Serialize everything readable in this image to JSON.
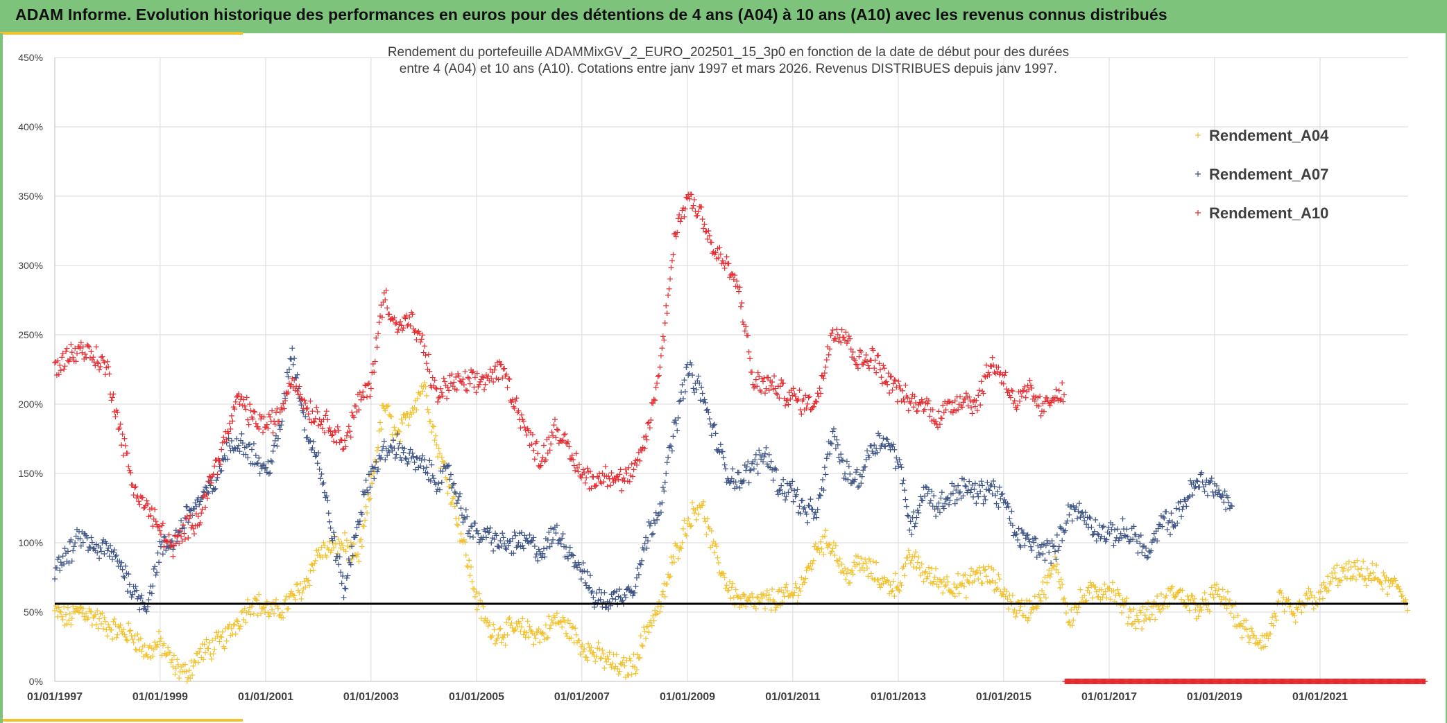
{
  "header": {
    "title": "ADAM Informe. Evolution historique des performances en euros pour des détentions de 4 ans (A04) à 10 ans (A10) avec les revenus connus distribués"
  },
  "colors": {
    "header_bg": "#7dc37c",
    "accent": "#f2c12e",
    "A04": "#f2c12e",
    "A07": "#3b5283",
    "A10": "#e52a2f",
    "reference_line": "#000000"
  },
  "chart_data": {
    "type": "scatter",
    "title_lines": [
      "Rendement du portefeuille ADAMMixGV_2_EURO_202501_15_3p0  en fonction de la date de début pour des durées",
      "entre 4 (A04) et 10 ans (A10). Cotations entre janv 1997 et mars 2026. Revenus DISTRIBUES depuis janv 1997."
    ],
    "xlabel": "",
    "ylabel": "",
    "x_range": [
      "1997-01-01",
      "2023-01-01"
    ],
    "ylim": [
      0,
      450
    ],
    "y_ticks": [
      "0%",
      "50%",
      "100%",
      "150%",
      "200%",
      "250%",
      "300%",
      "350%",
      "400%",
      "450%"
    ],
    "x_ticks": [
      "01/01/1997",
      "01/01/1999",
      "01/01/2001",
      "01/01/2003",
      "01/01/2005",
      "01/01/2007",
      "01/01/2009",
      "01/01/2011",
      "01/01/2013",
      "01/01/2015",
      "01/01/2017",
      "01/01/2019",
      "01/01/2021"
    ],
    "grid": true,
    "legend_position": "top-right",
    "marker": "+",
    "reference_line_value": 56,
    "zero_band": {
      "series": "Rendement_A10",
      "from": "2016-03-01",
      "to": "2023-01-01",
      "value": 0
    },
    "series": [
      {
        "name": "Rendement_A04",
        "end": "2022-09-01",
        "points": [
          [
            "1997-01-01",
            50
          ],
          [
            "1997-04-01",
            45
          ],
          [
            "1997-07-01",
            52
          ],
          [
            "1997-10-01",
            46
          ],
          [
            "1998-01-01",
            40
          ],
          [
            "1998-04-01",
            36
          ],
          [
            "1998-07-01",
            33
          ],
          [
            "1998-10-01",
            20
          ],
          [
            "1999-01-01",
            28
          ],
          [
            "1999-04-01",
            12
          ],
          [
            "1999-07-01",
            5
          ],
          [
            "1999-10-01",
            20
          ],
          [
            "2000-01-01",
            25
          ],
          [
            "2000-04-01",
            32
          ],
          [
            "2000-07-01",
            45
          ],
          [
            "2000-10-01",
            58
          ],
          [
            "2001-01-01",
            52
          ],
          [
            "2001-04-01",
            50
          ],
          [
            "2001-07-01",
            60
          ],
          [
            "2001-10-01",
            70
          ],
          [
            "2002-01-01",
            93
          ],
          [
            "2002-04-01",
            95
          ],
          [
            "2002-07-01",
            100
          ],
          [
            "2002-10-01",
            85
          ],
          [
            "2003-01-01",
            140
          ],
          [
            "2003-04-01",
            200
          ],
          [
            "2003-07-01",
            175
          ],
          [
            "2003-10-01",
            195
          ],
          [
            "2004-01-01",
            215
          ],
          [
            "2004-04-01",
            170
          ],
          [
            "2004-07-01",
            140
          ],
          [
            "2004-10-01",
            100
          ],
          [
            "2005-01-01",
            60
          ],
          [
            "2005-04-01",
            37
          ],
          [
            "2005-07-01",
            35
          ],
          [
            "2005-10-01",
            38
          ],
          [
            "2006-01-01",
            36
          ],
          [
            "2006-04-01",
            33
          ],
          [
            "2006-07-01",
            45
          ],
          [
            "2006-10-01",
            38
          ],
          [
            "2007-01-01",
            26
          ],
          [
            "2007-04-01",
            20
          ],
          [
            "2007-07-01",
            15
          ],
          [
            "2007-10-01",
            9
          ],
          [
            "2008-01-01",
            12
          ],
          [
            "2008-04-01",
            40
          ],
          [
            "2008-07-01",
            55
          ],
          [
            "2008-10-01",
            90
          ],
          [
            "2009-01-01",
            115
          ],
          [
            "2009-04-01",
            130
          ],
          [
            "2009-07-01",
            95
          ],
          [
            "2009-10-01",
            70
          ],
          [
            "2010-01-01",
            58
          ],
          [
            "2010-04-01",
            56
          ],
          [
            "2010-07-01",
            58
          ],
          [
            "2010-10-01",
            60
          ],
          [
            "2011-01-01",
            62
          ],
          [
            "2011-04-01",
            75
          ],
          [
            "2011-07-01",
            100
          ],
          [
            "2011-10-01",
            100
          ],
          [
            "2012-01-01",
            75
          ],
          [
            "2012-04-01",
            85
          ],
          [
            "2012-07-01",
            80
          ],
          [
            "2012-10-01",
            70
          ],
          [
            "2013-01-01",
            70
          ],
          [
            "2013-04-01",
            90
          ],
          [
            "2013-07-01",
            78
          ],
          [
            "2013-10-01",
            73
          ],
          [
            "2014-01-01",
            70
          ],
          [
            "2014-04-01",
            68
          ],
          [
            "2014-07-01",
            78
          ],
          [
            "2014-10-01",
            75
          ],
          [
            "2015-01-01",
            65
          ],
          [
            "2015-04-01",
            52
          ],
          [
            "2015-07-01",
            52
          ],
          [
            "2015-10-01",
            65
          ],
          [
            "2016-01-01",
            85
          ],
          [
            "2016-04-01",
            45
          ],
          [
            "2016-07-01",
            60
          ],
          [
            "2016-10-01",
            65
          ],
          [
            "2017-01-01",
            68
          ],
          [
            "2017-04-01",
            55
          ],
          [
            "2017-07-01",
            45
          ],
          [
            "2017-10-01",
            50
          ],
          [
            "2018-01-01",
            55
          ],
          [
            "2018-04-01",
            65
          ],
          [
            "2018-07-01",
            58
          ],
          [
            "2018-10-01",
            52
          ],
          [
            "2019-01-01",
            63
          ],
          [
            "2019-04-01",
            58
          ],
          [
            "2019-07-01",
            40
          ],
          [
            "2019-10-01",
            30
          ],
          [
            "2020-01-01",
            30
          ],
          [
            "2020-04-01",
            60
          ],
          [
            "2020-07-01",
            45
          ],
          [
            "2020-10-01",
            60
          ],
          [
            "2021-01-01",
            60
          ],
          [
            "2021-04-01",
            75
          ],
          [
            "2021-07-01",
            78
          ],
          [
            "2021-10-01",
            78
          ],
          [
            "2022-01-01",
            77
          ],
          [
            "2022-04-01",
            70
          ],
          [
            "2022-07-01",
            68
          ],
          [
            "2022-09-01",
            55
          ]
        ]
      },
      {
        "name": "Rendement_A07",
        "end": "2019-05-01",
        "points": [
          [
            "1997-01-01",
            82
          ],
          [
            "1997-04-01",
            90
          ],
          [
            "1997-07-01",
            105
          ],
          [
            "1997-10-01",
            95
          ],
          [
            "1998-01-01",
            95
          ],
          [
            "1998-04-01",
            85
          ],
          [
            "1998-07-01",
            65
          ],
          [
            "1998-10-01",
            55
          ],
          [
            "1999-01-01",
            95
          ],
          [
            "1999-04-01",
            100
          ],
          [
            "1999-07-01",
            120
          ],
          [
            "1999-10-01",
            130
          ],
          [
            "2000-01-01",
            140
          ],
          [
            "2000-04-01",
            165
          ],
          [
            "2000-07-01",
            175
          ],
          [
            "2000-10-01",
            165
          ],
          [
            "2001-01-01",
            150
          ],
          [
            "2001-04-01",
            175
          ],
          [
            "2001-07-01",
            240
          ],
          [
            "2001-10-01",
            185
          ],
          [
            "2002-01-01",
            160
          ],
          [
            "2002-04-01",
            110
          ],
          [
            "2002-07-01",
            65
          ],
          [
            "2002-10-01",
            115
          ],
          [
            "2003-01-01",
            150
          ],
          [
            "2003-04-01",
            165
          ],
          [
            "2003-07-01",
            170
          ],
          [
            "2003-10-01",
            160
          ],
          [
            "2004-01-01",
            155
          ],
          [
            "2004-04-01",
            145
          ],
          [
            "2004-07-01",
            150
          ],
          [
            "2004-10-01",
            120
          ],
          [
            "2005-01-01",
            105
          ],
          [
            "2005-04-01",
            105
          ],
          [
            "2005-07-01",
            98
          ],
          [
            "2005-10-01",
            100
          ],
          [
            "2006-01-01",
            100
          ],
          [
            "2006-04-01",
            92
          ],
          [
            "2006-07-01",
            108
          ],
          [
            "2006-10-01",
            95
          ],
          [
            "2007-01-01",
            80
          ],
          [
            "2007-04-01",
            60
          ],
          [
            "2007-07-01",
            58
          ],
          [
            "2007-10-01",
            62
          ],
          [
            "2008-01-01",
            70
          ],
          [
            "2008-04-01",
            105
          ],
          [
            "2008-07-01",
            130
          ],
          [
            "2008-10-01",
            180
          ],
          [
            "2009-01-01",
            225
          ],
          [
            "2009-04-01",
            210
          ],
          [
            "2009-07-01",
            180
          ],
          [
            "2009-10-01",
            150
          ],
          [
            "2010-01-01",
            145
          ],
          [
            "2010-04-01",
            155
          ],
          [
            "2010-07-01",
            165
          ],
          [
            "2010-10-01",
            140
          ],
          [
            "2011-01-01",
            138
          ],
          [
            "2011-04-01",
            120
          ],
          [
            "2011-07-01",
            125
          ],
          [
            "2011-10-01",
            180
          ],
          [
            "2012-01-01",
            150
          ],
          [
            "2012-04-01",
            145
          ],
          [
            "2012-07-01",
            170
          ],
          [
            "2012-10-01",
            175
          ],
          [
            "2013-01-01",
            160
          ],
          [
            "2013-04-01",
            110
          ],
          [
            "2013-07-01",
            140
          ],
          [
            "2013-10-01",
            125
          ],
          [
            "2014-01-01",
            135
          ],
          [
            "2014-04-01",
            140
          ],
          [
            "2014-07-01",
            135
          ],
          [
            "2014-10-01",
            140
          ],
          [
            "2015-01-01",
            130
          ],
          [
            "2015-04-01",
            105
          ],
          [
            "2015-07-01",
            100
          ],
          [
            "2015-10-01",
            95
          ],
          [
            "2016-01-01",
            95
          ],
          [
            "2016-04-01",
            125
          ],
          [
            "2016-07-01",
            120
          ],
          [
            "2016-10-01",
            110
          ],
          [
            "2017-01-01",
            105
          ],
          [
            "2017-04-01",
            108
          ],
          [
            "2017-07-01",
            105
          ],
          [
            "2017-10-01",
            90
          ],
          [
            "2018-01-01",
            115
          ],
          [
            "2018-04-01",
            115
          ],
          [
            "2018-07-01",
            135
          ],
          [
            "2018-10-01",
            145
          ],
          [
            "2019-01-01",
            140
          ],
          [
            "2019-05-01",
            125
          ]
        ]
      },
      {
        "name": "Rendement_A10",
        "end": "2016-03-01",
        "points": [
          [
            "1997-01-01",
            225
          ],
          [
            "1997-04-01",
            235
          ],
          [
            "1997-07-01",
            240
          ],
          [
            "1997-10-01",
            235
          ],
          [
            "1998-01-01",
            225
          ],
          [
            "1998-04-01",
            180
          ],
          [
            "1998-07-01",
            140
          ],
          [
            "1998-10-01",
            125
          ],
          [
            "1999-01-01",
            110
          ],
          [
            "1999-04-01",
            95
          ],
          [
            "1999-07-01",
            110
          ],
          [
            "1999-10-01",
            120
          ],
          [
            "2000-01-01",
            150
          ],
          [
            "2000-04-01",
            175
          ],
          [
            "2000-07-01",
            205
          ],
          [
            "2000-10-01",
            190
          ],
          [
            "2001-01-01",
            185
          ],
          [
            "2001-04-01",
            190
          ],
          [
            "2001-07-01",
            220
          ],
          [
            "2001-10-01",
            200
          ],
          [
            "2002-01-01",
            190
          ],
          [
            "2002-04-01",
            185
          ],
          [
            "2002-07-01",
            170
          ],
          [
            "2002-10-01",
            200
          ],
          [
            "2003-01-01",
            215
          ],
          [
            "2003-04-01",
            280
          ],
          [
            "2003-07-01",
            255
          ],
          [
            "2003-10-01",
            260
          ],
          [
            "2004-01-01",
            240
          ],
          [
            "2004-04-01",
            205
          ],
          [
            "2004-07-01",
            215
          ],
          [
            "2004-10-01",
            215
          ],
          [
            "2005-01-01",
            215
          ],
          [
            "2005-04-01",
            220
          ],
          [
            "2005-07-01",
            225
          ],
          [
            "2005-10-01",
            200
          ],
          [
            "2006-01-01",
            175
          ],
          [
            "2006-04-01",
            160
          ],
          [
            "2006-07-01",
            185
          ],
          [
            "2006-10-01",
            165
          ],
          [
            "2007-01-01",
            150
          ],
          [
            "2007-04-01",
            145
          ],
          [
            "2007-07-01",
            150
          ],
          [
            "2007-10-01",
            145
          ],
          [
            "2008-01-01",
            150
          ],
          [
            "2008-04-01",
            180
          ],
          [
            "2008-07-01",
            230
          ],
          [
            "2008-10-01",
            320
          ],
          [
            "2009-01-01",
            350
          ],
          [
            "2009-04-01",
            340
          ],
          [
            "2009-07-01",
            310
          ],
          [
            "2009-10-01",
            300
          ],
          [
            "2010-01-01",
            280
          ],
          [
            "2010-04-01",
            215
          ],
          [
            "2010-07-01",
            215
          ],
          [
            "2010-10-01",
            210
          ],
          [
            "2011-01-01",
            205
          ],
          [
            "2011-04-01",
            200
          ],
          [
            "2011-07-01",
            205
          ],
          [
            "2011-10-01",
            255
          ],
          [
            "2012-01-01",
            250
          ],
          [
            "2012-04-01",
            230
          ],
          [
            "2012-07-01",
            235
          ],
          [
            "2012-10-01",
            220
          ],
          [
            "2013-01-01",
            210
          ],
          [
            "2013-04-01",
            200
          ],
          [
            "2013-07-01",
            200
          ],
          [
            "2013-10-01",
            190
          ],
          [
            "2014-01-01",
            200
          ],
          [
            "2014-04-01",
            205
          ],
          [
            "2014-07-01",
            200
          ],
          [
            "2014-10-01",
            230
          ],
          [
            "2015-01-01",
            220
          ],
          [
            "2015-04-01",
            200
          ],
          [
            "2015-07-01",
            210
          ],
          [
            "2015-10-01",
            195
          ],
          [
            "2016-01-01",
            210
          ],
          [
            "2016-03-01",
            205
          ]
        ]
      }
    ]
  }
}
